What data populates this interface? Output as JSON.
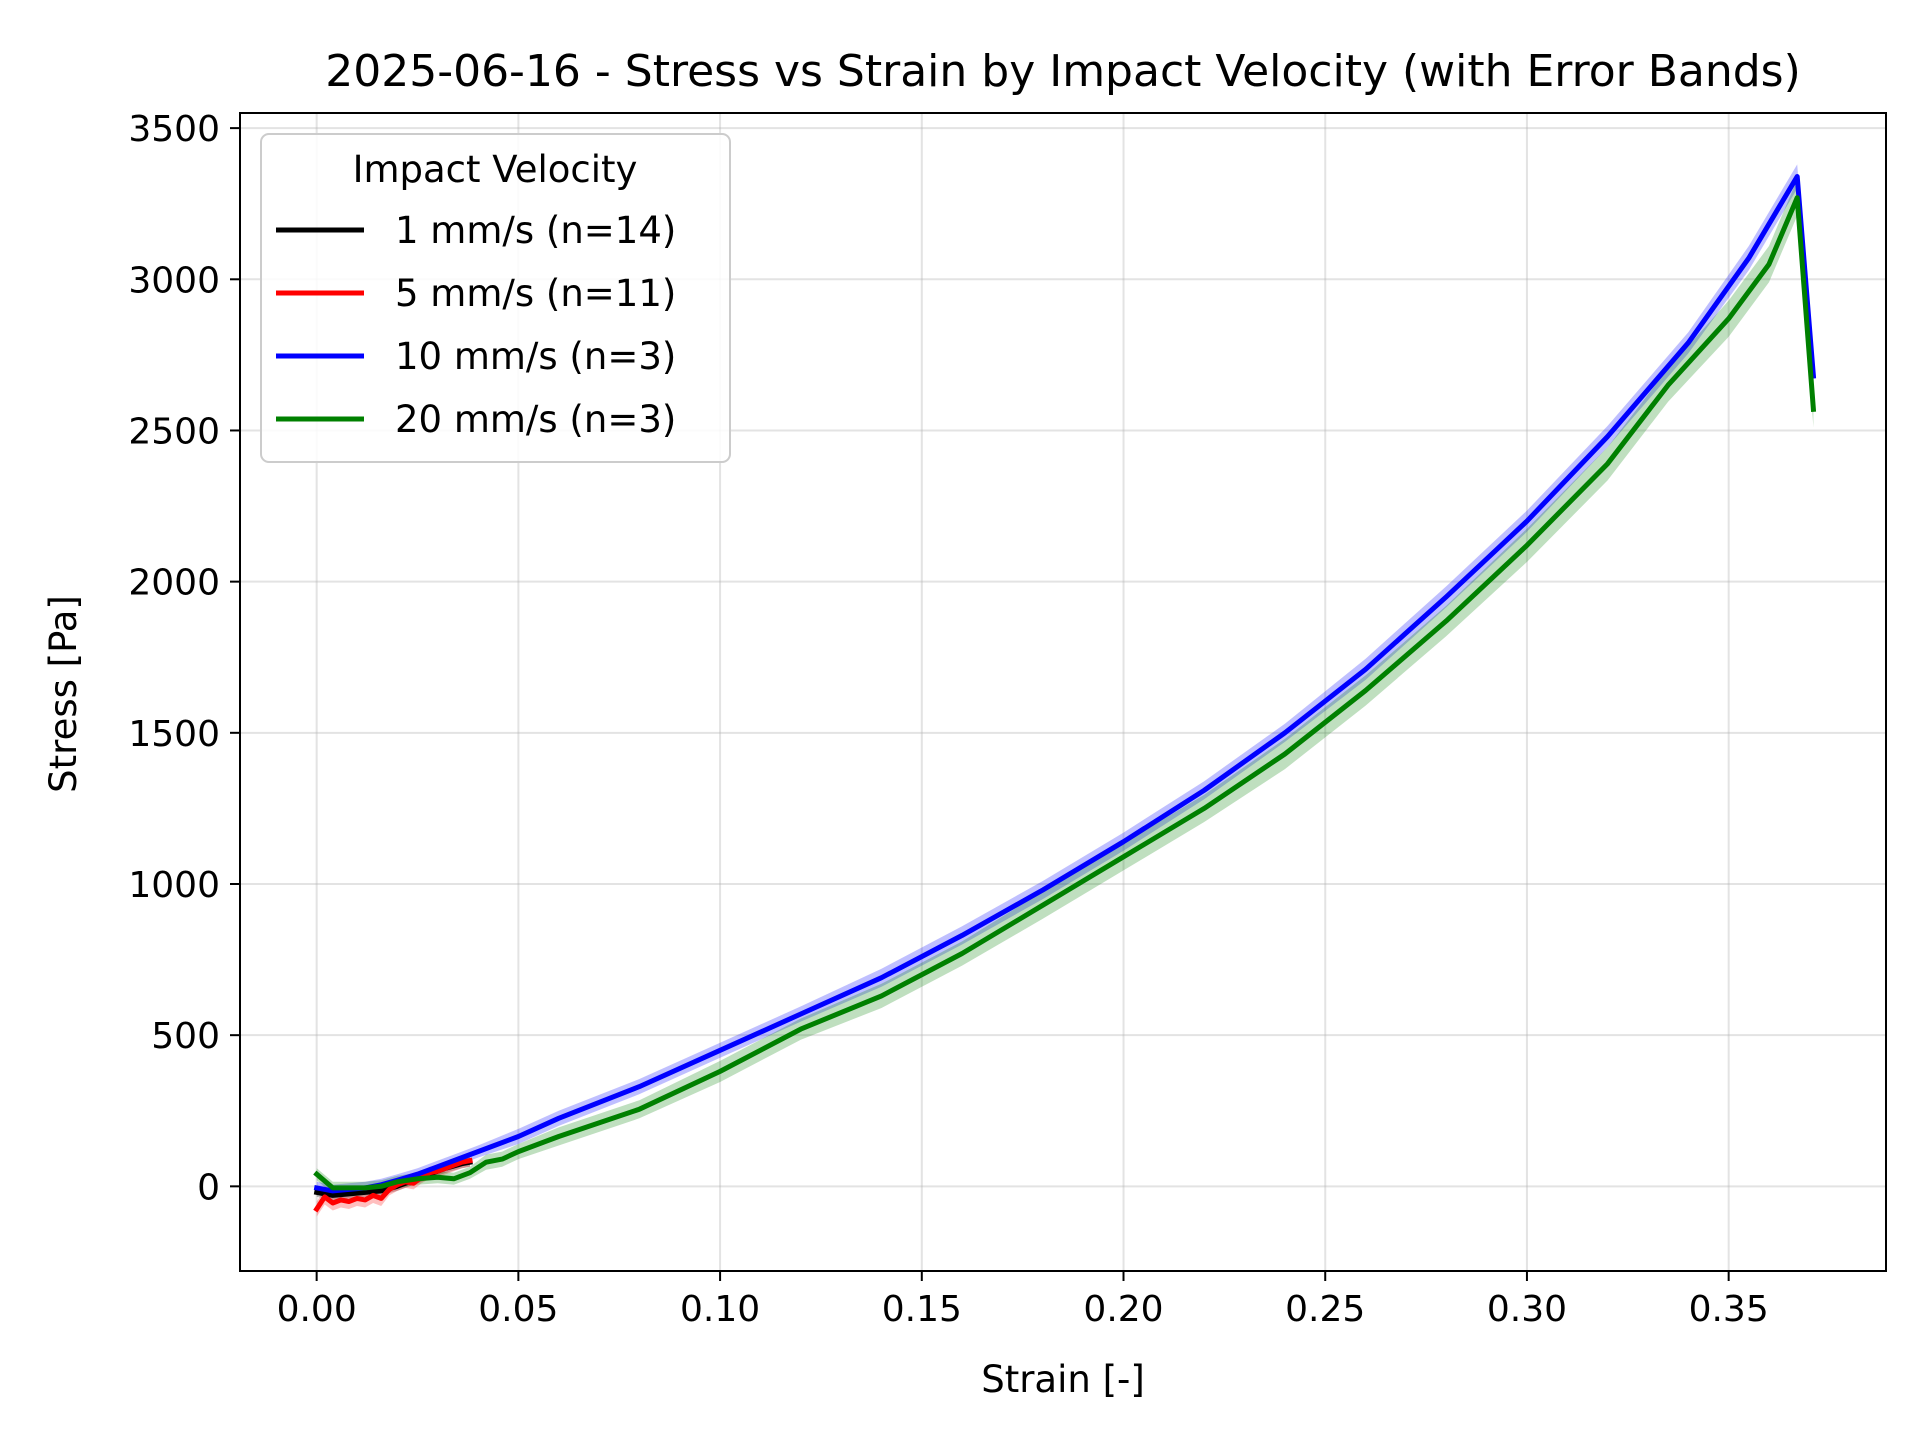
{
  "chart_data": {
    "type": "line",
    "title": "2025-06-16 - Stress vs Strain by Impact Velocity (with Error Bands)",
    "xlabel": "Strain [-]",
    "ylabel": "Stress [Pa]",
    "xlim": [
      -0.019,
      0.389
    ],
    "ylim": [
      -280,
      3550
    ],
    "xticks": [
      0.0,
      0.05,
      0.1,
      0.15,
      0.2,
      0.25,
      0.3,
      0.35
    ],
    "xtick_labels": [
      "0.00",
      "0.05",
      "0.10",
      "0.15",
      "0.20",
      "0.25",
      "0.30",
      "0.35"
    ],
    "yticks": [
      0,
      500,
      1000,
      1500,
      2000,
      2500,
      3000,
      3500
    ],
    "ytick_labels": [
      "0",
      "500",
      "1000",
      "1500",
      "2000",
      "2500",
      "3000",
      "3500"
    ],
    "grid": true,
    "legend": {
      "title": "Impact Velocity",
      "placement": "top-left"
    },
    "series": [
      {
        "name": "1 mm/s (n=14)",
        "color": "#000000",
        "x": [
          0.0,
          0.004,
          0.008,
          0.012,
          0.016,
          0.02,
          0.024,
          0.028,
          0.032,
          0.036,
          0.038
        ],
        "y": [
          -20,
          -30,
          -25,
          -20,
          -15,
          0,
          20,
          40,
          60,
          75,
          80
        ],
        "err": [
          15,
          15,
          15,
          15,
          15,
          15,
          15,
          15,
          15,
          15,
          15
        ]
      },
      {
        "name": "5 mm/s (n=11)",
        "color": "#ff0000",
        "x": [
          0.0,
          0.002,
          0.004,
          0.006,
          0.008,
          0.01,
          0.012,
          0.014,
          0.016,
          0.018,
          0.02,
          0.022,
          0.024,
          0.026,
          0.028,
          0.03,
          0.032,
          0.034,
          0.036,
          0.038
        ],
        "y": [
          -75,
          -35,
          -55,
          -45,
          -50,
          -40,
          -45,
          -30,
          -40,
          -10,
          5,
          15,
          10,
          30,
          45,
          50,
          60,
          70,
          80,
          85
        ],
        "err": [
          25,
          25,
          25,
          25,
          25,
          25,
          25,
          25,
          25,
          20,
          20,
          20,
          20,
          20,
          20,
          20,
          20,
          20,
          20,
          20
        ]
      },
      {
        "name": "10 mm/s (n=3)",
        "color": "#0000ff",
        "x": [
          0.0,
          0.004,
          0.008,
          0.012,
          0.016,
          0.02,
          0.025,
          0.03,
          0.035,
          0.04,
          0.05,
          0.06,
          0.08,
          0.1,
          0.12,
          0.14,
          0.16,
          0.18,
          0.2,
          0.22,
          0.24,
          0.26,
          0.28,
          0.3,
          0.32,
          0.34,
          0.355,
          0.367,
          0.371
        ],
        "y": [
          -5,
          -15,
          -10,
          -5,
          5,
          20,
          40,
          65,
          90,
          115,
          165,
          225,
          330,
          450,
          570,
          690,
          830,
          980,
          1140,
          1310,
          1500,
          1710,
          1950,
          2200,
          2480,
          2790,
          3070,
          3340,
          2680
        ],
        "err": [
          20,
          20,
          20,
          20,
          20,
          20,
          20,
          20,
          20,
          20,
          25,
          25,
          25,
          25,
          25,
          30,
          30,
          30,
          30,
          30,
          30,
          35,
          35,
          35,
          35,
          35,
          40,
          40,
          40
        ]
      },
      {
        "name": "20 mm/s (n=3)",
        "color": "#008000",
        "x": [
          0.0,
          0.004,
          0.008,
          0.012,
          0.016,
          0.02,
          0.025,
          0.03,
          0.034,
          0.038,
          0.042,
          0.046,
          0.05,
          0.06,
          0.08,
          0.1,
          0.12,
          0.14,
          0.16,
          0.18,
          0.2,
          0.22,
          0.24,
          0.26,
          0.28,
          0.3,
          0.32,
          0.335,
          0.35,
          0.36,
          0.367,
          0.371
        ],
        "y": [
          40,
          -5,
          -5,
          -5,
          0,
          15,
          25,
          30,
          25,
          45,
          80,
          90,
          115,
          165,
          255,
          380,
          520,
          630,
          770,
          930,
          1090,
          1250,
          1430,
          1640,
          1870,
          2120,
          2390,
          2650,
          2870,
          3050,
          3270,
          2570
        ],
        "err": [
          20,
          20,
          20,
          20,
          20,
          20,
          20,
          20,
          20,
          20,
          25,
          25,
          25,
          30,
          30,
          35,
          35,
          40,
          40,
          45,
          45,
          45,
          50,
          50,
          50,
          55,
          55,
          55,
          60,
          60,
          60,
          60
        ]
      }
    ]
  }
}
